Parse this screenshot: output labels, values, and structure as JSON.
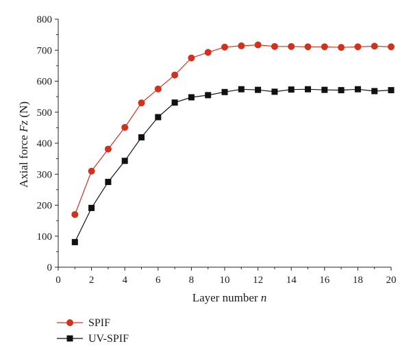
{
  "chart_data": {
    "type": "line",
    "title": "",
    "xlabel_main": "Layer number ",
    "xlabel_var": "n",
    "ylabel_main": "Axial force ",
    "ylabel_var": "Fz",
    "ylabel_unit": " (N)",
    "xlim": [
      0,
      20
    ],
    "ylim": [
      0,
      800
    ],
    "x_ticks": [
      0,
      2,
      4,
      6,
      8,
      10,
      12,
      14,
      16,
      18,
      20
    ],
    "y_ticks": [
      0,
      100,
      200,
      300,
      400,
      500,
      600,
      700,
      800
    ],
    "grid": false,
    "legend_position": "bottom-left, below plot",
    "series": [
      {
        "name": "SPIF",
        "color": "#d0321d",
        "marker": "circle",
        "x": [
          1,
          2,
          3,
          4,
          5,
          6,
          7,
          8,
          9,
          10,
          11,
          12,
          13,
          14,
          15,
          16,
          17,
          18,
          19,
          20
        ],
        "values": [
          170,
          310,
          381,
          451,
          530,
          575,
          620,
          675,
          693,
          710,
          714,
          717,
          712,
          712,
          711,
          711,
          709,
          711,
          713,
          711
        ]
      },
      {
        "name": "UV-SPIF",
        "color": "#111111",
        "marker": "square",
        "x": [
          1,
          2,
          3,
          4,
          5,
          6,
          7,
          8,
          9,
          10,
          11,
          12,
          13,
          14,
          15,
          16,
          17,
          18,
          19,
          20
        ],
        "values": [
          81,
          191,
          275,
          343,
          419,
          484,
          531,
          548,
          555,
          565,
          574,
          572,
          566,
          573,
          574,
          572,
          571,
          574,
          568,
          571
        ]
      }
    ]
  }
}
